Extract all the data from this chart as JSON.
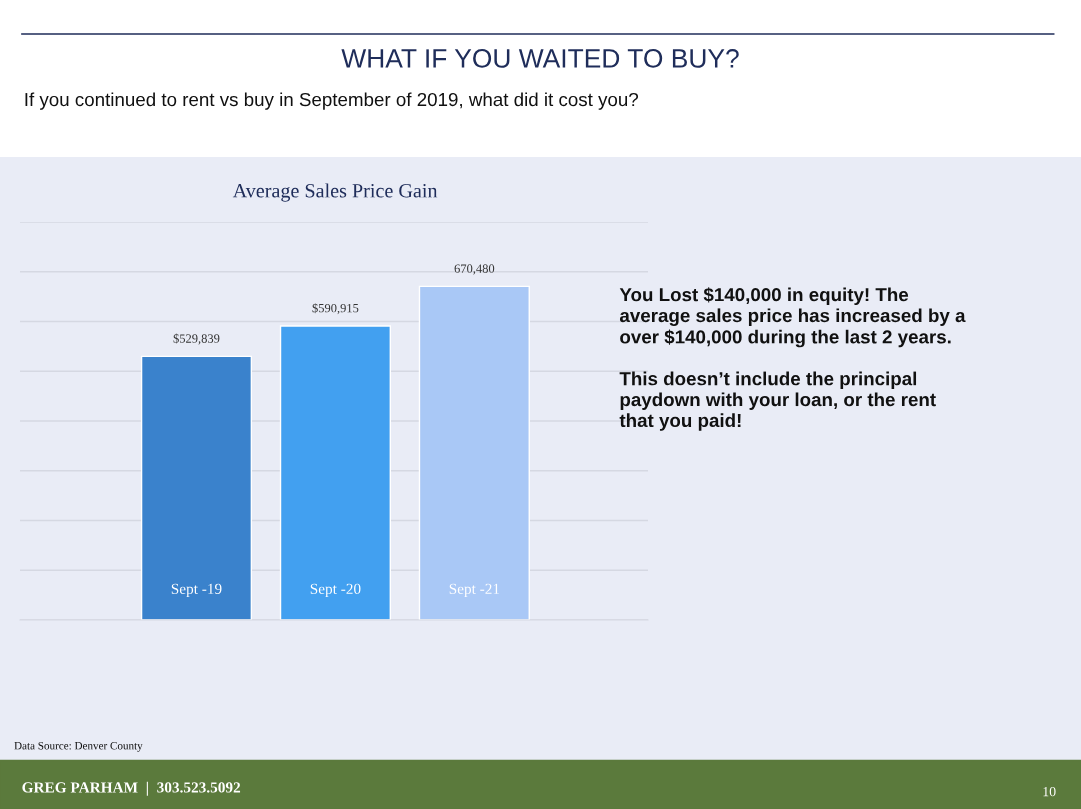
{
  "chart_data": {
    "type": "bar",
    "title": "WHAT IF YOU WAITED TO BUY?",
    "subtitle": "If you continued to rent vs buy in September of 2019, what did it cost you?",
    "categories": [
      "Sept -19",
      "Sept -20",
      "Sept -21"
    ],
    "values": [
      529839,
      590915,
      670480
    ],
    "colors": [
      "#3a82cc",
      "#42a0f0",
      "#a9c8f6"
    ],
    "value_labels": [
      "$529,839",
      "$590,915",
      "670,480"
    ],
    "ylim": [
      0,
      800000
    ],
    "yticks": [
      {
        "value": 0,
        "label": null
      },
      {
        "value": 100000,
        "label": null
      },
      {
        "value": 200000,
        "label": null
      },
      {
        "value": 300000,
        "label": null
      },
      {
        "value": 400000,
        "label": null
      },
      {
        "value": 500000,
        "label": null
      },
      {
        "value": 600000,
        "label": null
      },
      {
        "value": 700000,
        "label": null
      },
      {
        "value": 800000,
        "label": null
      }
    ],
    "grid": "y",
    "annotations": [
      "Average Sales Price Gain",
      "You Lost $140,000 in equity! The\naverage sales price has increased by a\nover $140,000 during the last 2 years.\n\nThis doesn’t include the principal\npaydown with your loan, or the rent\nthat you paid!",
      "Data Source: Denver County",
      "GREG PARHAM  |  303.523.5092",
      "10"
    ]
  }
}
